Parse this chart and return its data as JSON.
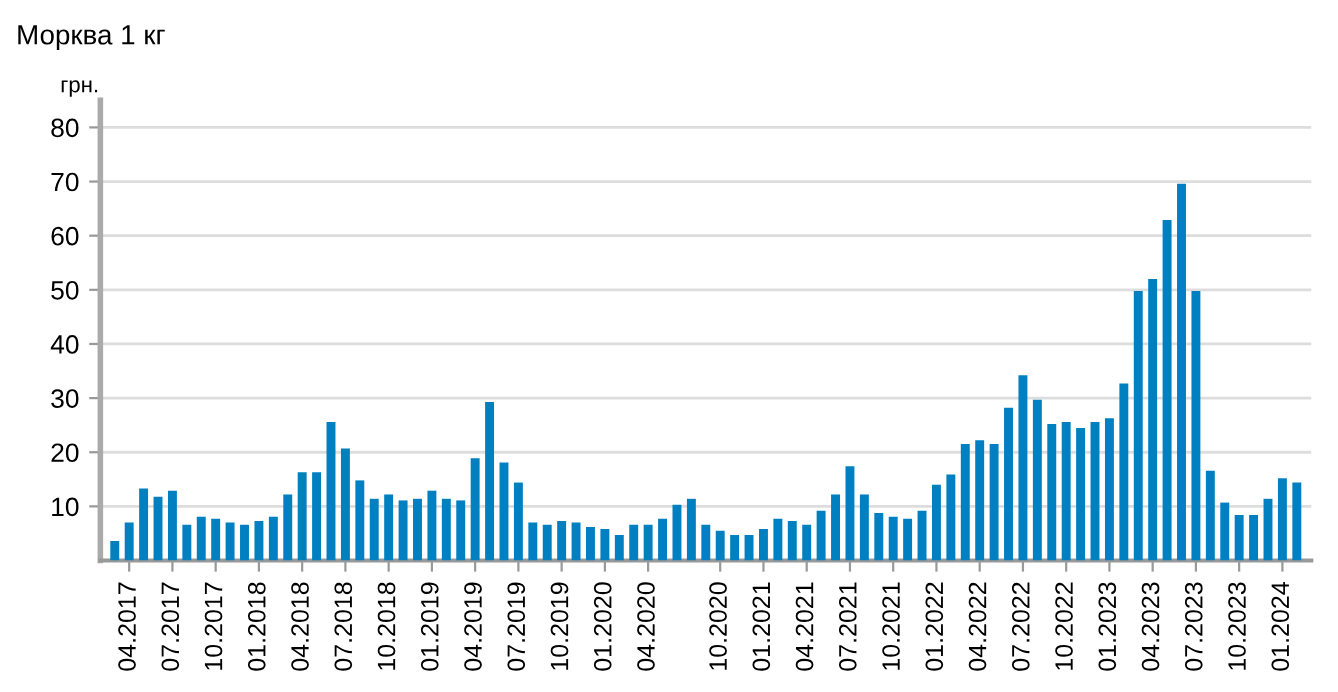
{
  "chart_data": {
    "type": "bar",
    "title": "Морква 1 кг",
    "ylabel": "грн.",
    "categories": [
      null,
      "04.2017",
      null,
      null,
      "07.2017",
      null,
      null,
      "10.2017",
      null,
      null,
      "01.2018",
      null,
      null,
      "04.2018",
      null,
      null,
      "07.2018",
      null,
      null,
      "10.2018",
      null,
      null,
      "01.2019",
      null,
      null,
      "04.2019",
      null,
      null,
      "07.2019",
      null,
      null,
      "10.2019",
      null,
      null,
      "01.2020",
      null,
      null,
      "04.2020",
      null,
      null,
      null,
      null,
      "10.2020",
      null,
      null,
      "01.2021",
      null,
      null,
      "04.2021",
      null,
      null,
      "07.2021",
      null,
      null,
      "10.2021",
      null,
      null,
      "01.2022",
      null,
      null,
      "04.2022",
      null,
      null,
      "07.2022",
      null,
      null,
      "10.2022",
      null,
      null,
      "01.2023",
      null,
      null,
      "04.2023",
      null,
      null,
      "07.2023",
      null,
      null,
      "10.2023",
      null,
      null,
      "01.2024",
      null
    ],
    "values": [
      3.6,
      7.0,
      13.3,
      11.8,
      12.9,
      6.6,
      8.1,
      7.7,
      7.0,
      6.6,
      7.3,
      8.1,
      12.2,
      16.3,
      16.3,
      25.6,
      20.7,
      14.8,
      11.4,
      12.2,
      11.1,
      11.4,
      12.9,
      11.4,
      11.1,
      18.9,
      29.3,
      18.1,
      14.4,
      7.0,
      6.6,
      7.3,
      7.0,
      6.2,
      5.8,
      4.7,
      6.6,
      6.6,
      7.7,
      10.3,
      11.4,
      6.6,
      5.5,
      4.7,
      4.7,
      5.8,
      7.7,
      7.3,
      6.6,
      9.2,
      12.2,
      17.4,
      12.2,
      8.8,
      8.1,
      7.7,
      9.2,
      14.0,
      15.9,
      21.5,
      22.2,
      21.5,
      28.2,
      34.2,
      29.7,
      25.2,
      25.6,
      24.5,
      25.6,
      26.3,
      32.7,
      49.8,
      52.0,
      62.9,
      69.6,
      49.8,
      16.6,
      10.7,
      8.4,
      8.4,
      11.4,
      15.2,
      14.4
    ],
    "color": "#0080c0",
    "ylim": [
      0,
      85
    ],
    "yticks": [
      10,
      20,
      30,
      40,
      50,
      60,
      70,
      80
    ],
    "grid": "y"
  }
}
